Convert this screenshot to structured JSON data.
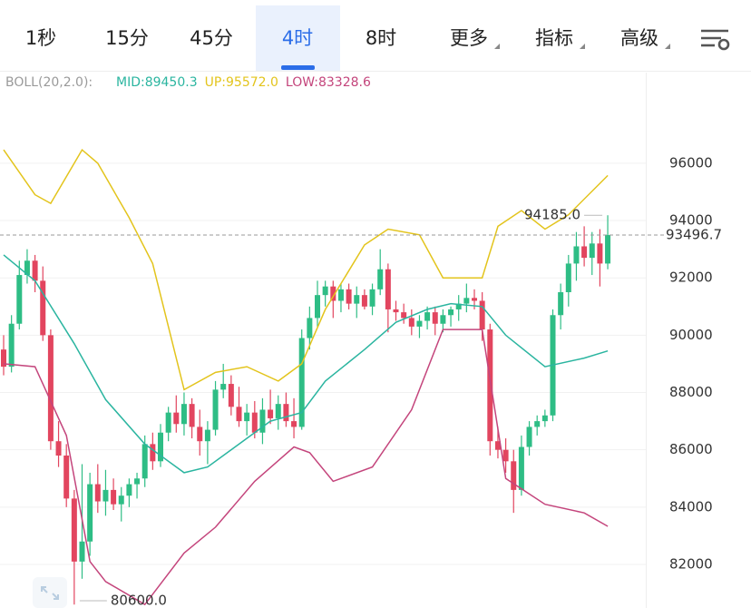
{
  "tabs": [
    {
      "label": "1秒"
    },
    {
      "label": "15分"
    },
    {
      "label": "45分"
    },
    {
      "label": "4时",
      "active": true
    },
    {
      "label": "8时"
    },
    {
      "label": "更多",
      "dropdown": true
    },
    {
      "label": "指标",
      "dropdown": true
    },
    {
      "label": "高级",
      "dropdown": true
    }
  ],
  "chart_data": {
    "type": "candlestick",
    "indicator_label": "BOLL(20,2.0):",
    "up_color": "#2ebd85",
    "down_color": "#e2455f",
    "open": [
      89500,
      88900,
      90400,
      92100,
      92600,
      91900,
      90000,
      86300,
      85800,
      84300,
      82100,
      82800,
      84800,
      84200,
      84600,
      84100,
      84400,
      84800,
      85000,
      86200,
      85600,
      86600,
      87300,
      86900,
      87600,
      86800,
      86300,
      86700,
      88100,
      88300,
      87500,
      87000,
      87300,
      86600,
      87400,
      87100,
      87600,
      87000,
      86800,
      89900,
      90600,
      91400,
      91700,
      91200,
      91600,
      91100,
      91400,
      91000,
      91600,
      92300,
      90900,
      90800,
      90600,
      90300,
      90500,
      90800,
      90400,
      90700,
      90900,
      91100,
      91300,
      91200,
      90200,
      86300,
      86000,
      85600,
      84600,
      86100,
      86800,
      87000,
      87200,
      90700,
      91500,
      92500,
      93100,
      92700,
      93200,
      92500
    ],
    "high": [
      90000,
      90700,
      92600,
      93000,
      92800,
      92400,
      90200,
      87000,
      86200,
      84600,
      85500,
      85200,
      85500,
      85300,
      85000,
      84700,
      85000,
      85200,
      86500,
      86600,
      86900,
      87500,
      87900,
      88000,
      87800,
      87400,
      87000,
      88400,
      89000,
      88600,
      88200,
      87600,
      87700,
      87800,
      88100,
      87900,
      88000,
      87800,
      90200,
      91000,
      91900,
      91900,
      91900,
      91800,
      91800,
      91700,
      91600,
      91800,
      93000,
      92500,
      91200,
      91100,
      90900,
      90700,
      91000,
      91000,
      90900,
      91000,
      91400,
      91800,
      91600,
      91500,
      90400,
      86800,
      86400,
      86000,
      86500,
      87000,
      87200,
      87400,
      90900,
      91800,
      92800,
      93600,
      93800,
      93600,
      93700,
      94185
    ],
    "low": [
      88600,
      88700,
      90200,
      91800,
      91500,
      89800,
      86000,
      85400,
      84000,
      80600,
      81500,
      82300,
      83800,
      83700,
      83900,
      83500,
      84000,
      84300,
      84700,
      85300,
      85400,
      86300,
      86600,
      86500,
      86400,
      85800,
      85500,
      86500,
      87800,
      87200,
      86800,
      86500,
      86400,
      86200,
      86900,
      86700,
      86800,
      86400,
      86700,
      89500,
      90300,
      91000,
      90600,
      90800,
      90900,
      90600,
      90900,
      90700,
      91400,
      90100,
      90500,
      90400,
      90000,
      89900,
      90200,
      90000,
      90100,
      90300,
      90500,
      90800,
      90900,
      89800,
      85800,
      85700,
      85200,
      83800,
      84400,
      85800,
      86500,
      86800,
      87000,
      90200,
      91000,
      91900,
      92400,
      92100,
      91700,
      92300
    ],
    "close": [
      88900,
      90400,
      92100,
      92600,
      91900,
      90000,
      86300,
      85800,
      84300,
      82100,
      82800,
      84800,
      84200,
      84600,
      84100,
      84400,
      84800,
      85000,
      86200,
      85600,
      86600,
      87300,
      86900,
      87600,
      86800,
      86300,
      86700,
      88100,
      88300,
      87500,
      87000,
      87300,
      86600,
      87400,
      87100,
      87600,
      87000,
      86800,
      89900,
      90600,
      91400,
      91700,
      91200,
      91600,
      91100,
      91400,
      91000,
      91600,
      92300,
      90900,
      90800,
      90600,
      90300,
      90500,
      90800,
      90400,
      90700,
      90900,
      91100,
      91300,
      91200,
      90200,
      86300,
      86000,
      85600,
      84600,
      86100,
      86800,
      87000,
      87200,
      90700,
      91500,
      92500,
      93100,
      92700,
      93200,
      92500,
      93496.7
    ],
    "series": [
      {
        "name": "MID:89450.3",
        "color": "#2bb5a0",
        "x": [
          0,
          4,
          9,
          13,
          18,
          23,
          26,
          30,
          34,
          38,
          41,
          46,
          50,
          54,
          57,
          61,
          64,
          69,
          74,
          77
        ],
        "values": [
          92800,
          91900,
          89700,
          87750,
          86200,
          85200,
          85400,
          86200,
          87000,
          87300,
          88400,
          89500,
          90450,
          90900,
          91100,
          91000,
          90000,
          88900,
          89200,
          89450.3
        ]
      },
      {
        "name": "UP:95572.0",
        "color": "#e3c41c",
        "x": [
          0,
          4,
          6,
          10,
          12,
          16,
          19,
          23,
          27,
          31,
          35,
          38,
          41,
          46,
          49,
          53,
          56,
          61,
          63,
          66,
          69,
          72,
          77
        ],
        "values": [
          96470,
          94900,
          94600,
          96470,
          96000,
          94100,
          92500,
          88100,
          88700,
          88900,
          88400,
          89000,
          90900,
          93150,
          93700,
          93500,
          92000,
          92000,
          93800,
          94350,
          93700,
          94200,
          95572
        ]
      },
      {
        "name": "LOW:83328.6",
        "color": "#c4457c",
        "x": [
          0,
          4,
          8,
          11,
          13,
          18,
          23,
          27,
          32,
          37,
          39,
          42,
          47,
          52,
          56,
          61,
          64,
          69,
          74,
          77
        ],
        "values": [
          89000,
          88900,
          86500,
          82100,
          81400,
          80600,
          82400,
          83300,
          84900,
          86100,
          85900,
          84900,
          85400,
          87400,
          90200,
          90200,
          85000,
          84100,
          83800,
          83328.6
        ]
      }
    ],
    "ylim": [
      80480,
      98530
    ],
    "yticks": [
      82000,
      84000,
      86000,
      88000,
      90000,
      92000,
      94000,
      96000
    ],
    "grid": true,
    "last_price": 93496.7,
    "annotations": [
      {
        "value": 94185,
        "label": "94185.0"
      },
      {
        "value": 80600,
        "label": "80600.0"
      }
    ]
  }
}
